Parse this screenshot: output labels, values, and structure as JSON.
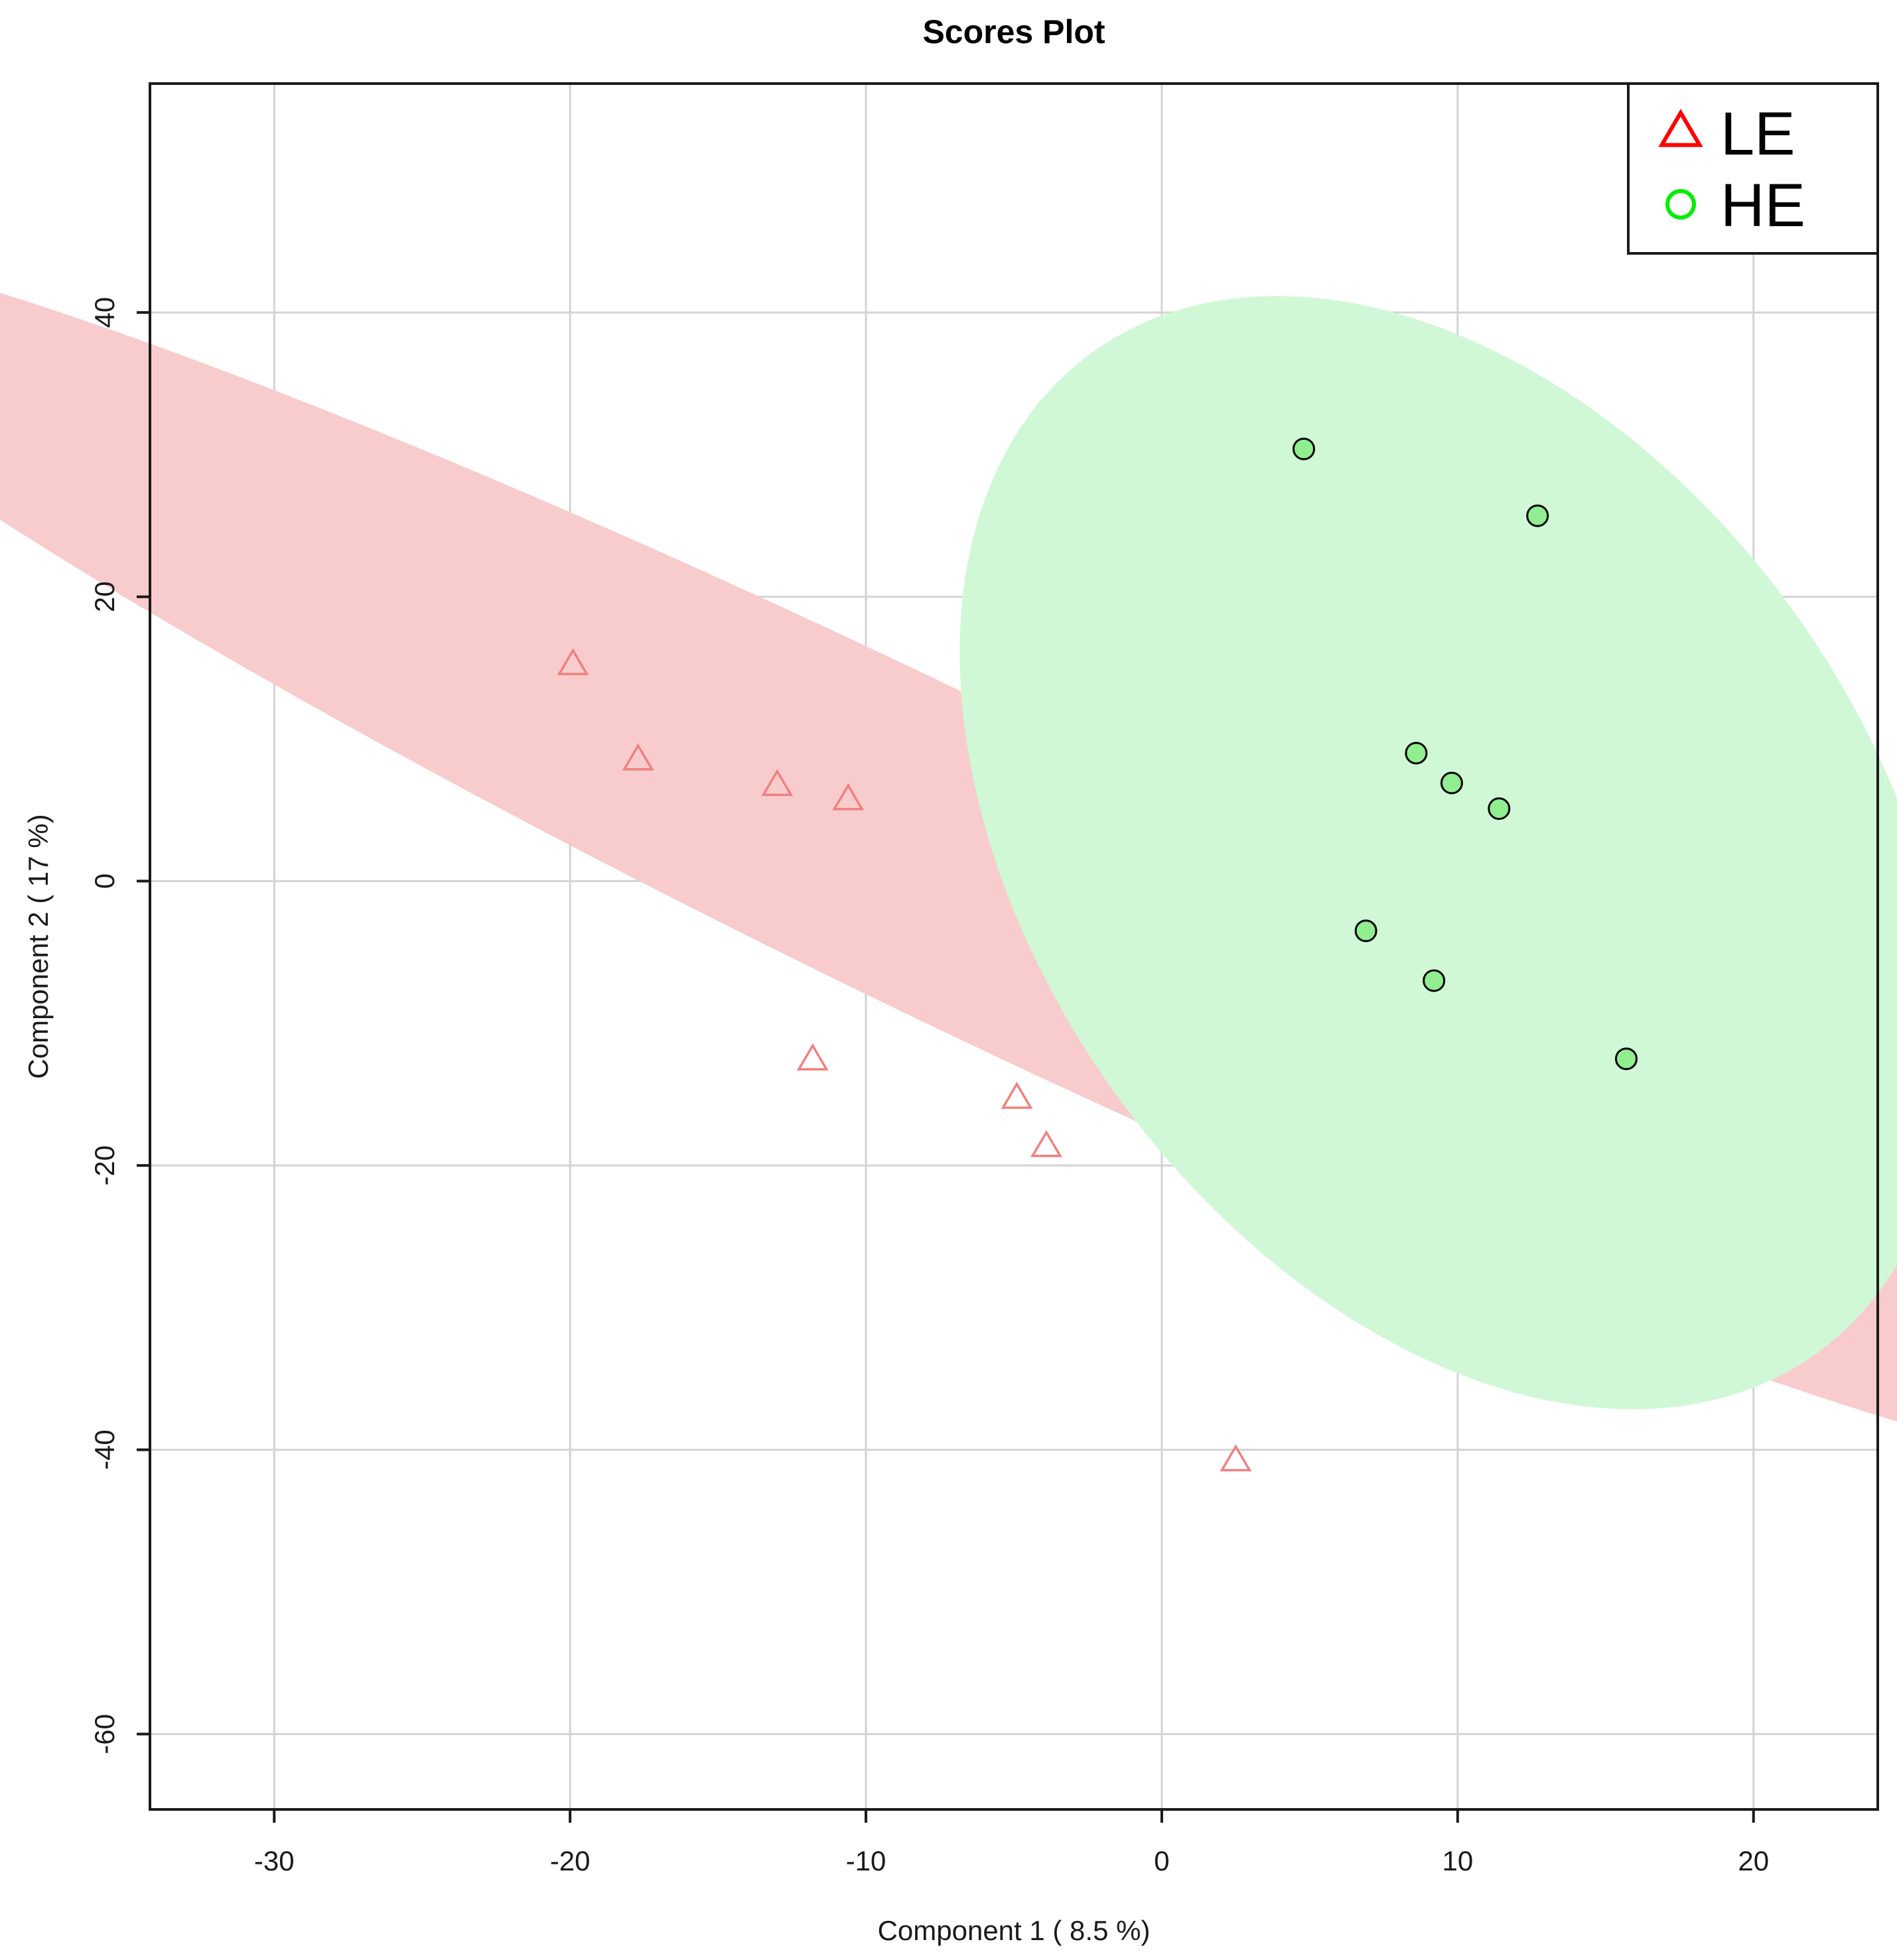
{
  "chart_data": {
    "type": "scatter",
    "title": "Scores Plot",
    "xlabel": "Component 1 ( 8.5 %)",
    "ylabel": "Component 2 ( 17 %)",
    "xlim": [
      -34.2,
      24.2
    ],
    "ylim": [
      -65.3,
      56.1
    ],
    "xticks": [
      -30,
      -20,
      -10,
      0,
      10,
      20
    ],
    "yticks": [
      -60,
      -40,
      -20,
      0,
      20,
      40
    ],
    "xtick_labels": [
      "-30",
      "-20",
      "-10",
      "0",
      "10",
      "20"
    ],
    "ytick_labels": [
      "-60",
      "-40",
      "-20",
      "0",
      "20",
      "40"
    ],
    "grid": true,
    "legend_position": "top-right",
    "series": [
      {
        "name": "LE",
        "marker": "triangle-open",
        "color": "#ff0000",
        "point_color": "#f08080",
        "ellipse_color": "#f8cccc",
        "x": [
          -19.9,
          -17.7,
          -13.0,
          -10.6,
          -11.8,
          -4.9,
          -3.9,
          2.5
        ],
        "y": [
          15.2,
          8.5,
          6.7,
          5.7,
          -12.6,
          -15.3,
          -18.7,
          -40.8
        ],
        "ellipse": {
          "center": [
            -7.7,
            2.0
          ],
          "semi_major": 59.3,
          "semi_minor": 8.6,
          "angle_deg": -46.1
        }
      },
      {
        "name": "HE",
        "marker": "circle-filled",
        "color": "#00ee00",
        "point_color": "#90ee90",
        "ellipse_color": "#d0f8d6",
        "x": [
          4.8,
          12.7,
          8.6,
          9.8,
          11.4,
          6.9,
          9.2,
          15.7
        ],
        "y": [
          30.4,
          25.7,
          9.0,
          6.9,
          5.1,
          -3.5,
          -7.0,
          -12.5
        ],
        "ellipse": {
          "center": [
            9.9,
            2.0
          ],
          "semi_major": 39.7,
          "semi_minor": 15.4,
          "angle_deg": -79.7
        }
      }
    ]
  }
}
